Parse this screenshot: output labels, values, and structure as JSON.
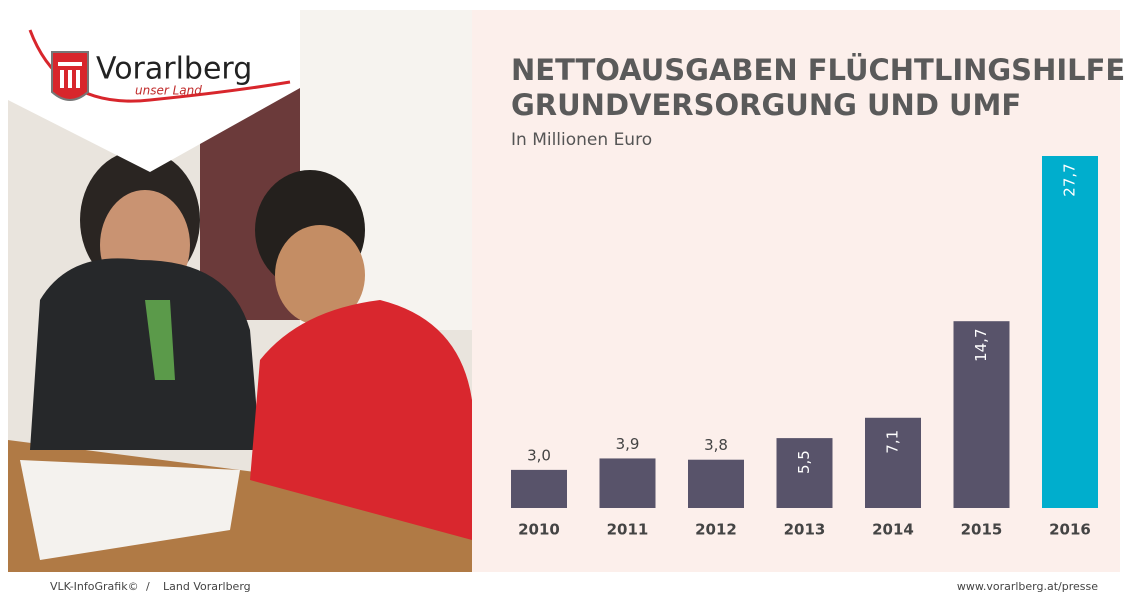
{
  "header": {
    "logo_name": "Vorarlberg",
    "logo_tagline": "unser Land"
  },
  "chart_data": {
    "type": "bar",
    "title": [
      "NETTOAUSGABEN FLÜCHTLINGSHILFE",
      "GRUNDVERSORGUNG UND UMF"
    ],
    "subtitle": "In Millionen Euro",
    "categories": [
      "2010",
      "2011",
      "2012",
      "2013",
      "2014",
      "2015",
      "2016"
    ],
    "values": [
      3.0,
      3.9,
      3.8,
      5.5,
      7.1,
      14.7,
      27.7
    ],
    "value_labels": [
      "3,0",
      "3,9",
      "3,8",
      "5,5",
      "7,1",
      "14,7",
      "27,7"
    ],
    "colors": [
      "#58536a",
      "#58536a",
      "#58536a",
      "#58536a",
      "#58536a",
      "#58536a",
      "#00aecd"
    ]
  },
  "footer": {
    "source": "VLK-InfoGrafik©",
    "separator": "/",
    "publisher": "Land Vorarlberg",
    "url": "www.vorarlberg.at/presse"
  }
}
